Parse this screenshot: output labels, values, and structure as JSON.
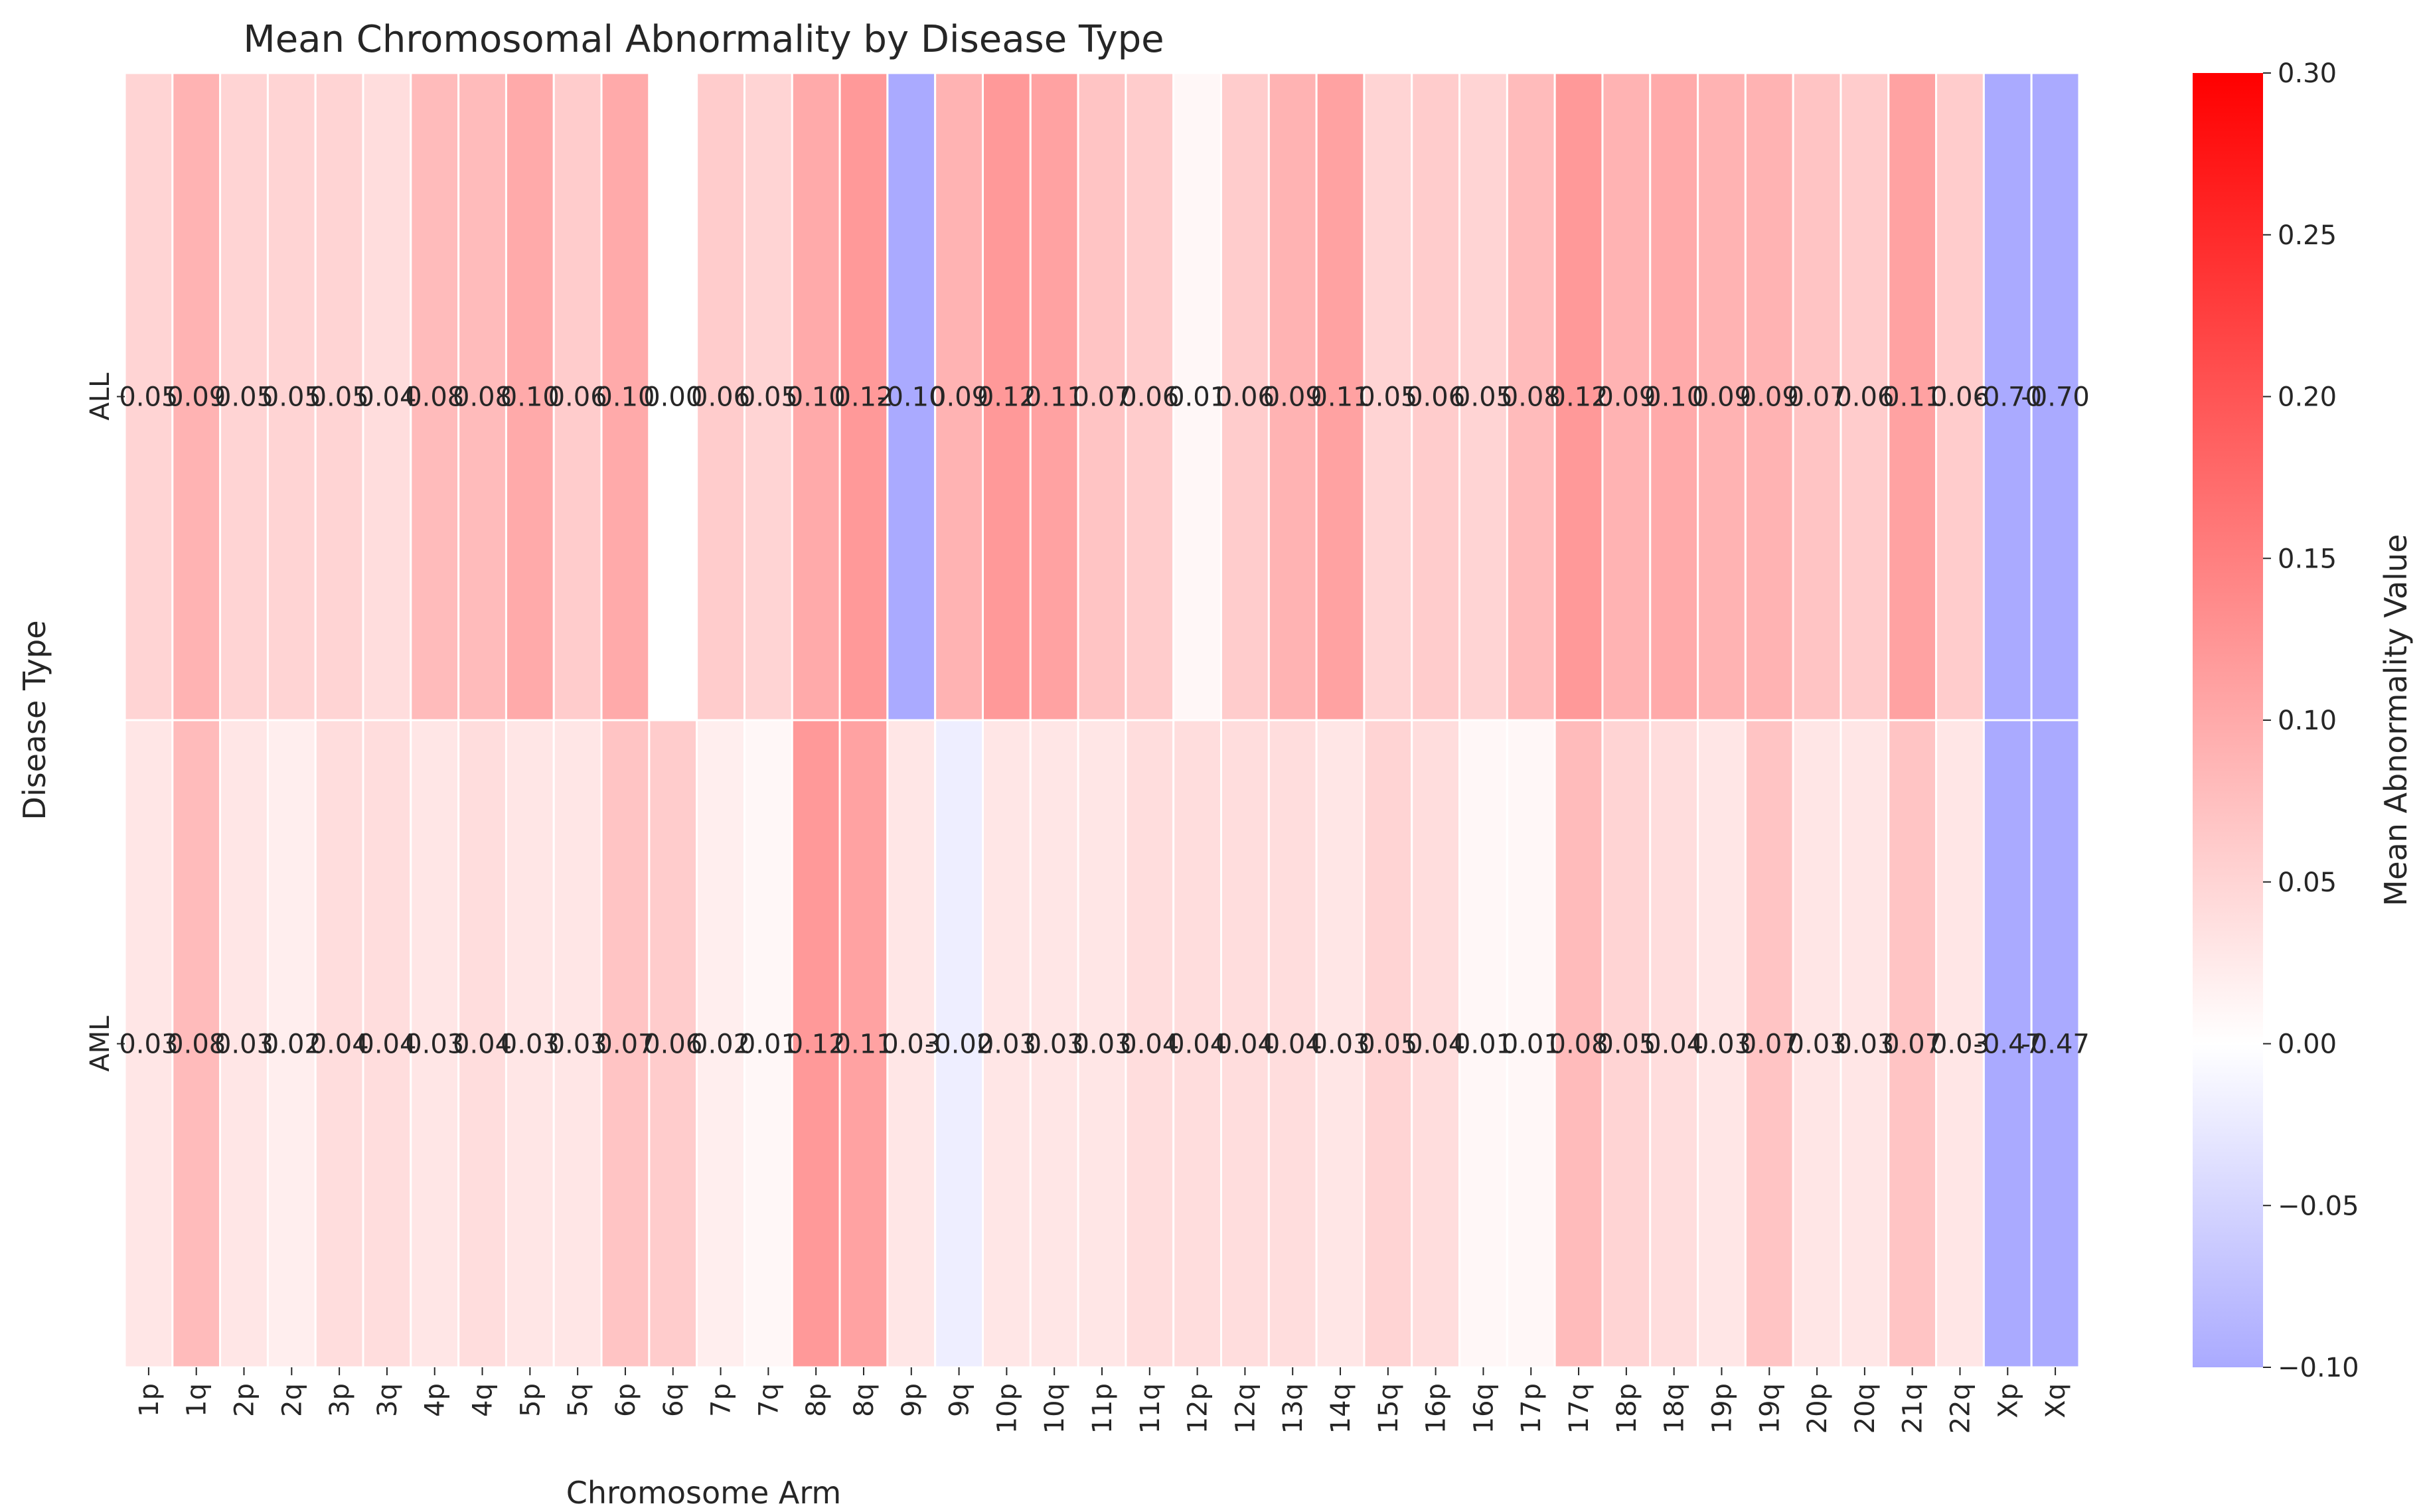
{
  "chart_data": {
    "type": "heatmap",
    "title": "Mean Chromosomal Abnormality by Disease Type",
    "xlabel": "Chromosome Arm",
    "ylabel": "Disease Type",
    "colorbar_label": "Mean Abnormality Value",
    "x_categories": [
      "1p",
      "1q",
      "2p",
      "2q",
      "3p",
      "3q",
      "4p",
      "4q",
      "5p",
      "5q",
      "6p",
      "6q",
      "7p",
      "7q",
      "8p",
      "8q",
      "9p",
      "9q",
      "10p",
      "10q",
      "11p",
      "11q",
      "12p",
      "12q",
      "13q",
      "14q",
      "15q",
      "16p",
      "16q",
      "17p",
      "17q",
      "18p",
      "18q",
      "19p",
      "19q",
      "20p",
      "20q",
      "21q",
      "22q",
      "Xp",
      "Xq"
    ],
    "y_categories": [
      "ALL",
      "AML"
    ],
    "values": [
      [
        0.05,
        0.09,
        0.05,
        0.05,
        0.05,
        0.04,
        0.08,
        0.08,
        0.1,
        0.06,
        0.1,
        0.0,
        0.06,
        0.05,
        0.1,
        0.12,
        -0.1,
        0.09,
        0.12,
        0.11,
        0.07,
        0.06,
        0.01,
        0.06,
        0.09,
        0.11,
        0.05,
        0.06,
        0.05,
        0.08,
        0.12,
        0.09,
        0.1,
        0.09,
        0.09,
        0.07,
        0.06,
        0.11,
        0.06,
        -0.7,
        -0.7
      ],
      [
        0.03,
        0.08,
        0.03,
        0.02,
        0.04,
        0.04,
        0.03,
        0.04,
        0.03,
        0.03,
        0.07,
        0.06,
        0.02,
        0.01,
        0.12,
        0.11,
        0.03,
        -0.02,
        0.03,
        0.03,
        0.03,
        0.04,
        0.04,
        0.04,
        0.04,
        0.03,
        0.05,
        0.04,
        0.01,
        0.01,
        0.08,
        0.05,
        0.04,
        0.03,
        0.07,
        0.03,
        0.03,
        0.07,
        0.03,
        -0.47,
        -0.47
      ]
    ],
    "value_labels": [
      [
        "0.05",
        "0.09",
        "0.05",
        "0.05",
        "0.05",
        "0.04",
        "0.08",
        "0.08",
        "0.10",
        "0.06",
        "0.10",
        "0.00",
        "0.06",
        "0.05",
        "0.10",
        "0.12",
        "-0.10",
        "0.09",
        "0.12",
        "0.11",
        "0.07",
        "0.06",
        "0.01",
        "0.06",
        "0.09",
        "0.11",
        "0.05",
        "0.06",
        "0.05",
        "0.08",
        "0.12",
        "0.09",
        "0.10",
        "0.09",
        "0.09",
        "0.07",
        "0.06",
        "0.11",
        "0.06",
        "-0.70",
        "-0.70"
      ],
      [
        "0.03",
        "0.08",
        "0.03",
        "0.02",
        "0.04",
        "0.04",
        "0.03",
        "0.04",
        "0.03",
        "0.03",
        "0.07",
        "0.06",
        "0.02",
        "0.01",
        "0.12",
        "0.11",
        "0.03",
        "-0.02",
        "0.03",
        "0.03",
        "0.03",
        "0.04",
        "0.04",
        "0.04",
        "0.04",
        "0.03",
        "0.05",
        "0.04",
        "0.01",
        "0.01",
        "0.08",
        "0.05",
        "0.04",
        "0.03",
        "0.07",
        "0.03",
        "0.03",
        "0.07",
        "0.03",
        "-0.47",
        "-0.47"
      ]
    ],
    "vmin": -0.1,
    "vmax": 0.3,
    "colorbar_ticks": [
      -0.1,
      -0.05,
      0.0,
      0.05,
      0.1,
      0.15,
      0.2,
      0.25,
      0.3
    ],
    "colorbar_tick_labels": [
      "−0.10",
      "−0.05",
      "0.00",
      "0.05",
      "0.10",
      "0.15",
      "0.20",
      "0.25",
      "0.30"
    ],
    "colors": {
      "low": "#aaaaff",
      "mid": "#ffffff",
      "high": "#ff0000"
    },
    "grid": false
  }
}
